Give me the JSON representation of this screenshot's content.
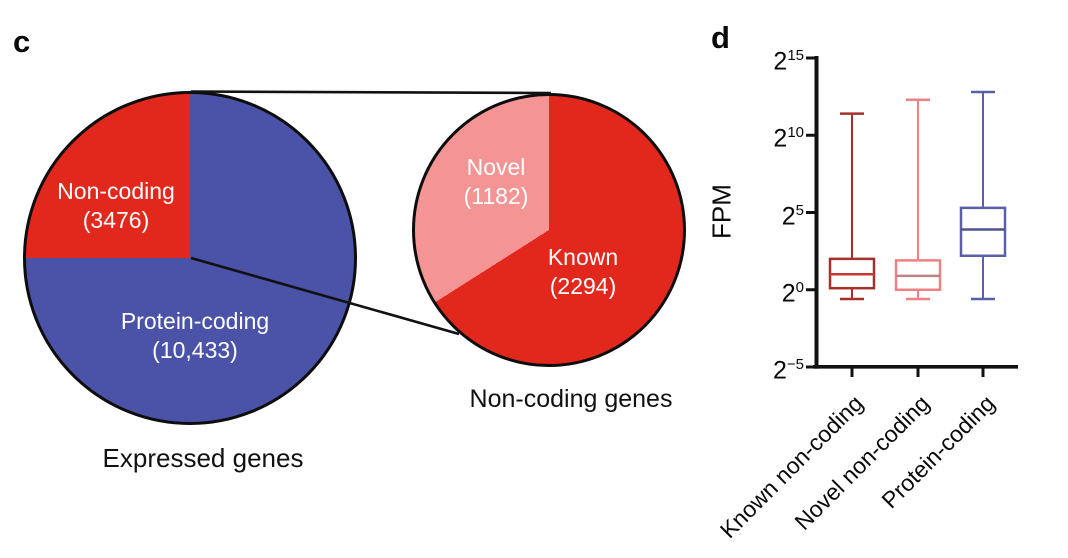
{
  "panels": {
    "c": "c",
    "d": "d"
  },
  "chart_data": [
    {
      "type": "pie",
      "title": "Expressed genes",
      "start_angle": "top",
      "direction": "clockwise",
      "slices": [
        {
          "label": "Protein-coding",
          "sublabel": "(10,433)",
          "value": 10433,
          "color": "#4a53a7",
          "text_color": "#ffffff"
        },
        {
          "label": "Non-coding",
          "sublabel": "(3476)",
          "value": 3476,
          "color": "#e2281c",
          "text_color": "#ffffff"
        }
      ]
    },
    {
      "type": "pie",
      "title": "Non-coding genes",
      "start_angle": "top",
      "direction": "clockwise",
      "slices": [
        {
          "label": "Known",
          "sublabel": "(2294)",
          "value": 2294,
          "color": "#e2281c",
          "text_color": "#ffffff"
        },
        {
          "label": "Novel",
          "sublabel": "(1182)",
          "value": 1182,
          "color": "#f59494",
          "text_color": "#ffffff"
        }
      ]
    },
    {
      "type": "box",
      "ylabel": "FPM",
      "y_scale": "log2",
      "y_tick_labels": [
        "2^15",
        "2^10",
        "2^5",
        "2^0",
        "2^-5"
      ],
      "y_tick_exponents": [
        15,
        10,
        5,
        0,
        -5
      ],
      "ylim_exponents": [
        -5,
        15
      ],
      "categories": [
        "Known non-coding",
        "Novel non-coding",
        "Protein-coding"
      ],
      "stats_unit": "log2(FPM) exponent, estimated from plot",
      "series": [
        {
          "category": "Known non-coding",
          "color": "#a5302c",
          "median_color": "#cb3732",
          "whisker_low": -0.6,
          "q1": 0.1,
          "median": 1.0,
          "q3": 2.0,
          "whisker_high": 11.4
        },
        {
          "category": "Novel non-coding",
          "color": "#ef8184",
          "median_color": "#bd8186",
          "whisker_low": -0.6,
          "q1": 0.0,
          "median": 0.9,
          "q3": 1.9,
          "whisker_high": 12.3
        },
        {
          "category": "Protein-coding",
          "color": "#5b5fa8",
          "median_color": "#50538c",
          "whisker_low": -0.6,
          "q1": 2.2,
          "median": 3.9,
          "q3": 5.3,
          "whisker_high": 12.8
        }
      ]
    }
  ]
}
